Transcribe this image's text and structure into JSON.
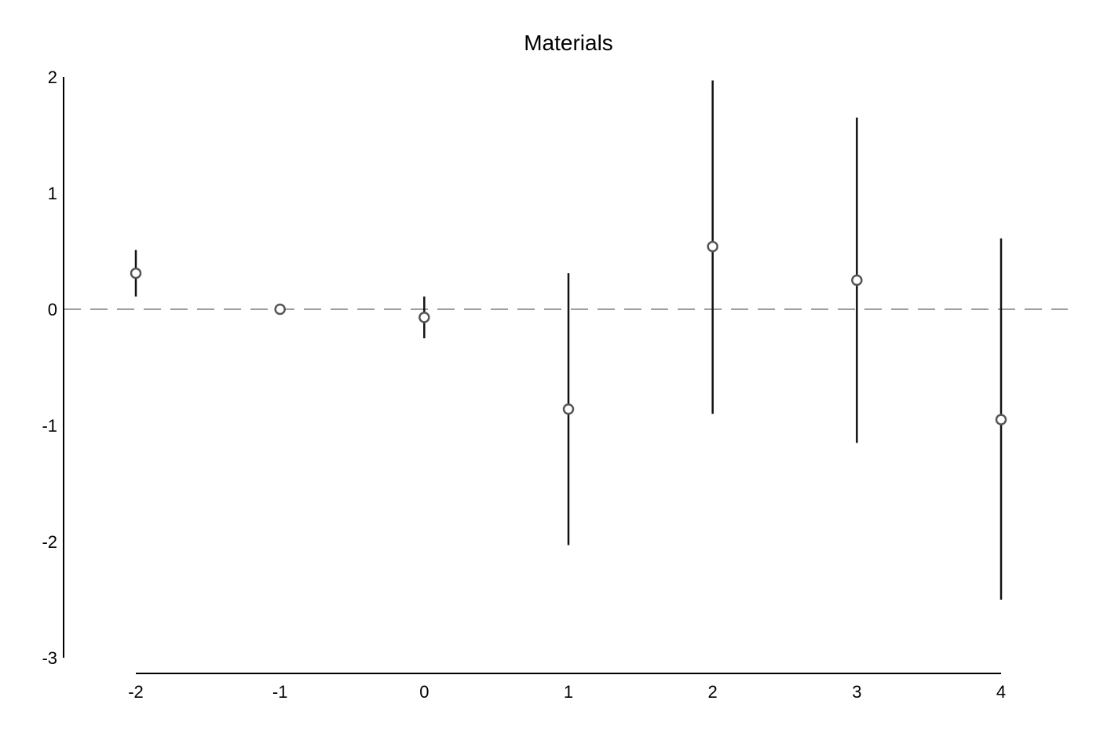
{
  "chart_data": {
    "type": "scatter",
    "title": "Materials",
    "xlabel": "",
    "ylabel": "",
    "x_ticks": [
      "-2",
      "-1",
      "0",
      "1",
      "2",
      "3",
      "4"
    ],
    "y_ticks": [
      "2",
      "1",
      "0",
      "-1",
      "-2",
      "-3"
    ],
    "xlim": [
      -2,
      4
    ],
    "ylim": [
      -3,
      2
    ],
    "reference_line": {
      "y": 0,
      "style": "dashed",
      "color": "#9e9e9e"
    },
    "grid": false,
    "legend": "none",
    "colors": {
      "marker": "#555555",
      "error_bar": "#111111",
      "axis": "#000000"
    },
    "points": [
      {
        "x": -2,
        "y": 0.31,
        "ci_low": 0.11,
        "ci_high": 0.51
      },
      {
        "x": -1,
        "y": 0.0,
        "ci_low": 0.0,
        "ci_high": 0.0
      },
      {
        "x": 0,
        "y": -0.07,
        "ci_low": -0.25,
        "ci_high": 0.11
      },
      {
        "x": 1,
        "y": -0.86,
        "ci_low": -2.03,
        "ci_high": 0.31
      },
      {
        "x": 2,
        "y": 0.54,
        "ci_low": -0.9,
        "ci_high": 1.97
      },
      {
        "x": 3,
        "y": 0.25,
        "ci_low": -1.15,
        "ci_high": 1.65
      },
      {
        "x": 4,
        "y": -0.95,
        "ci_low": -2.5,
        "ci_high": 0.61
      }
    ]
  }
}
